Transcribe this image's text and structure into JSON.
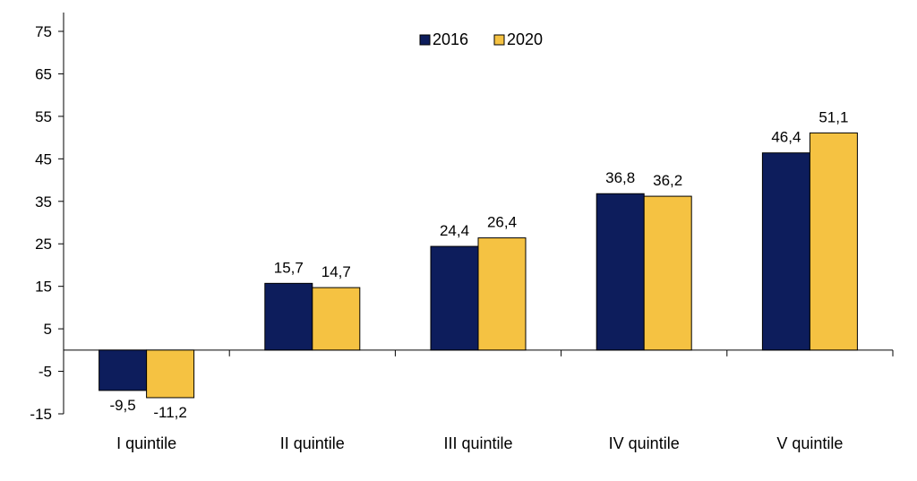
{
  "chart_data": {
    "type": "bar",
    "categories": [
      "I quintile",
      "II quintile",
      "III quintile",
      "IV quintile",
      "V quintile"
    ],
    "series": [
      {
        "name": "2016",
        "values": [
          -9.5,
          15.7,
          24.4,
          36.8,
          46.4
        ],
        "labels": [
          "-9,5",
          "15,7",
          "24,4",
          "36,8",
          "46,4"
        ],
        "color": "#0d1d5c"
      },
      {
        "name": "2020",
        "values": [
          -11.2,
          14.7,
          26.4,
          36.2,
          51.1
        ],
        "labels": [
          "-11,2",
          "14,7",
          "26,4",
          "36,2",
          "51,1"
        ],
        "color": "#f5c242"
      }
    ],
    "yticks": [
      75,
      65,
      55,
      45,
      35,
      25,
      15,
      5,
      -5,
      -15
    ],
    "ylim": [
      -15,
      80
    ],
    "grid": false,
    "legend_position": "top-center",
    "title": "",
    "xlabel": "",
    "ylabel": ""
  }
}
